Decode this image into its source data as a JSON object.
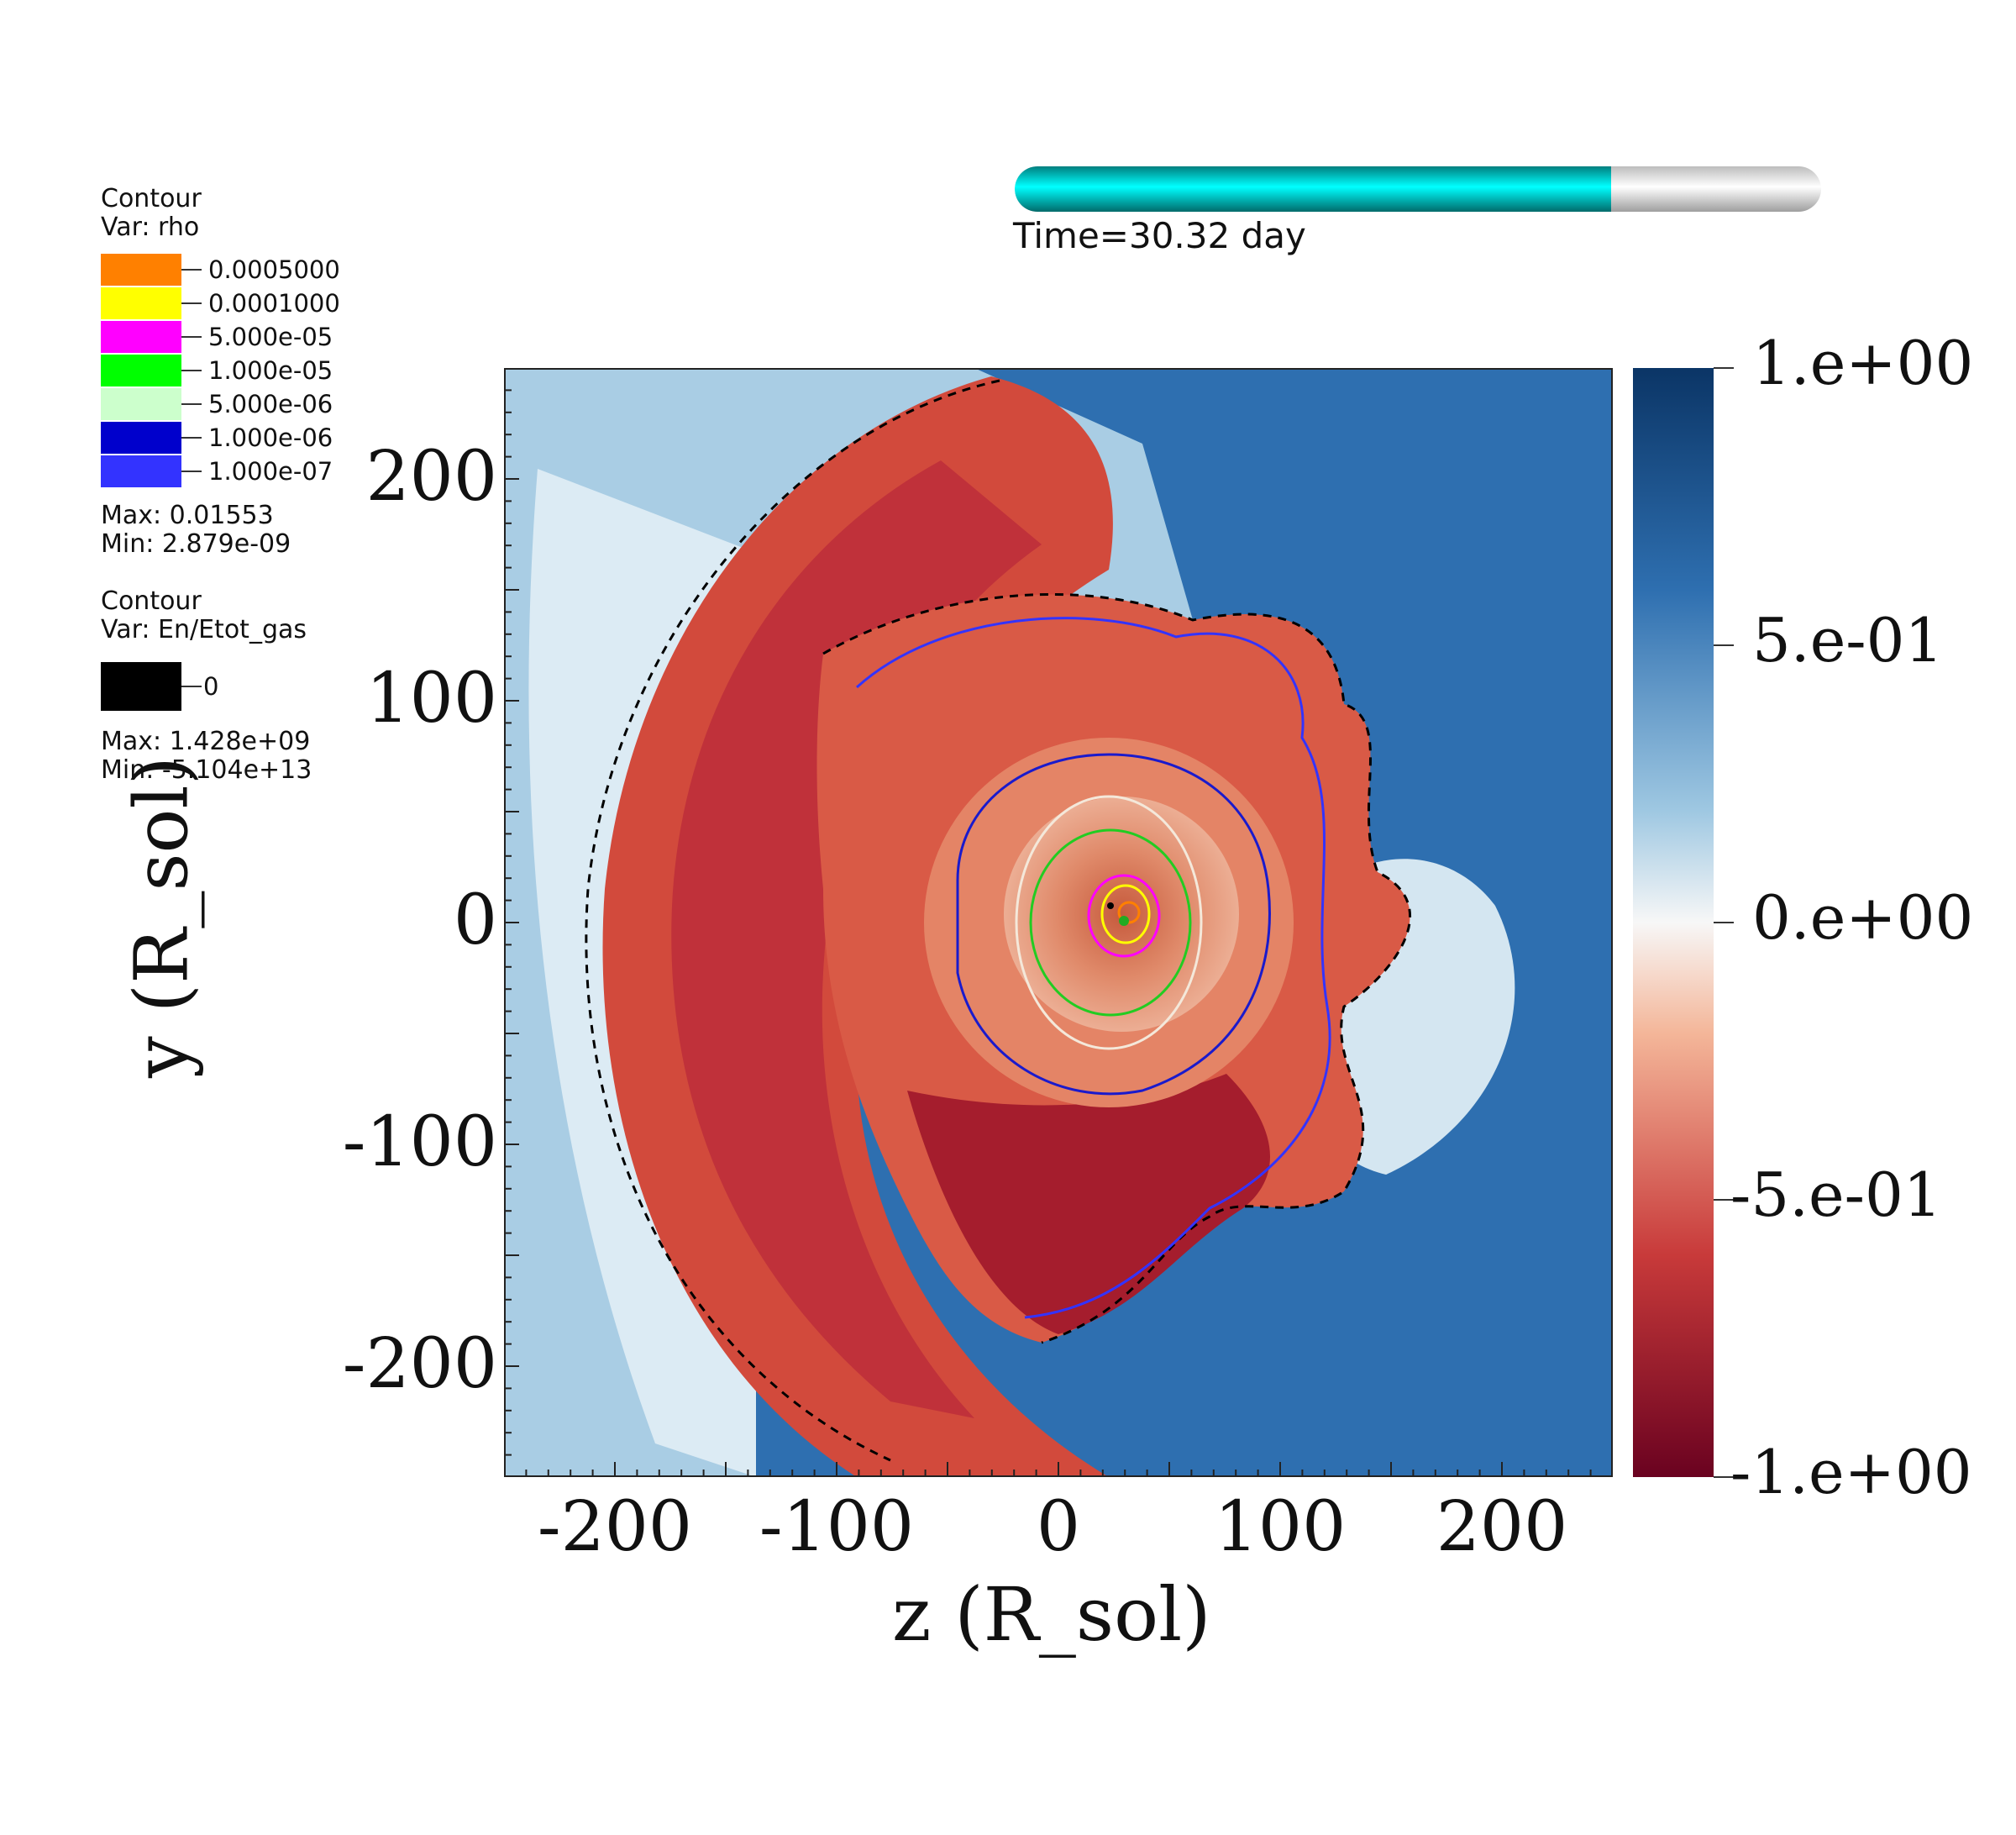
{
  "legend_rho": {
    "title": "Contour",
    "var": "Var: rho",
    "items": [
      {
        "label": "0.0005000",
        "color": "#ff8000"
      },
      {
        "label": "0.0001000",
        "color": "#ffff00"
      },
      {
        "label": "5.000e-05",
        "color": "#ff00ff"
      },
      {
        "label": "1.000e-05",
        "color": "#00ff00"
      },
      {
        "label": "5.000e-06",
        "color": "#ccffcc"
      },
      {
        "label": "1.000e-06",
        "color": "#0000cc"
      },
      {
        "label": "1.000e-07",
        "color": "#3333ff"
      }
    ],
    "max": "Max:  0.01553",
    "min": "Min:  2.879e-09"
  },
  "legend_en": {
    "title": "Contour",
    "var": "Var: En/Etot_gas",
    "items": [
      {
        "label": "0",
        "color": "#000000"
      }
    ],
    "max": "Max:  1.428e+09",
    "min": "Min: -5.104e+13"
  },
  "time": {
    "label": "Time=30.32 day",
    "progress": 0.74,
    "fill_color": "#00ffff"
  },
  "chart_data": {
    "type": "heatmap",
    "title": "",
    "xlabel": "z (R_sol)",
    "ylabel": "y (R_sol)",
    "xlim": [
      -250,
      250
    ],
    "ylim": [
      -250,
      250
    ],
    "x_ticks": [
      "-200",
      "-100",
      "0",
      "100",
      "200"
    ],
    "x_tick_values": [
      -200,
      -100,
      0,
      100,
      200
    ],
    "y_ticks": [
      "200",
      "100",
      "0",
      "-100",
      "-200"
    ],
    "y_tick_values": [
      200,
      100,
      0,
      -100,
      -200
    ],
    "colorbar": {
      "range": [
        -1,
        1
      ],
      "ticks": [
        "1.e+00",
        "5.e-01",
        "0.e+00",
        "-5.e-01",
        "-1.e+00"
      ],
      "tick_values": [
        1,
        0.5,
        0,
        -0.5,
        -1
      ],
      "colormap": "blue-white-red (diverging)"
    },
    "grid": false
  }
}
